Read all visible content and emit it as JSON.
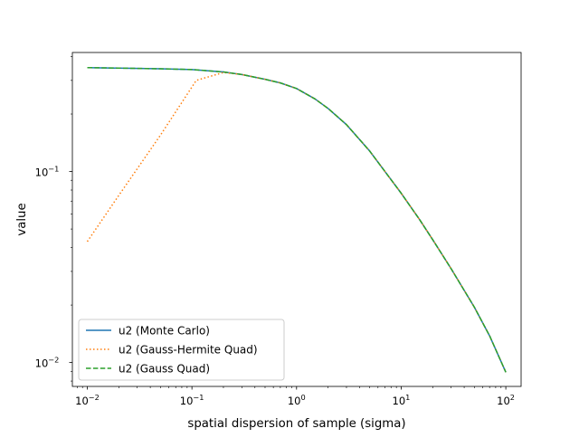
{
  "chart_data": {
    "type": "line",
    "title": "",
    "xlabel": "spatial dispersion of sample (sigma)",
    "ylabel": "value",
    "xscale": "log",
    "yscale": "log",
    "xlim": [
      0.0072,
      140
    ],
    "ylim": [
      0.0075,
      0.42
    ],
    "grid": false,
    "legend_location": "lower left",
    "x_ticks": [
      {
        "value": 0.01,
        "base": "10",
        "exp": "−2"
      },
      {
        "value": 0.1,
        "base": "10",
        "exp": "−1"
      },
      {
        "value": 1,
        "base": "10",
        "exp": "0"
      },
      {
        "value": 10,
        "base": "10",
        "exp": "1"
      },
      {
        "value": 100,
        "base": "10",
        "exp": "2"
      }
    ],
    "y_ticks": [
      {
        "value": 0.01,
        "base": "10",
        "exp": "−2"
      },
      {
        "value": 0.1,
        "base": "10",
        "exp": "−1"
      }
    ],
    "series": [
      {
        "name": "u2 (Monte Carlo)",
        "color": "#1f77b4",
        "style": "solid",
        "x": [
          0.01,
          0.02,
          0.05,
          0.1,
          0.2,
          0.3,
          0.5,
          0.7,
          1,
          1.5,
          2,
          3,
          5,
          7,
          10,
          15,
          20,
          30,
          50,
          70,
          100
        ],
        "y": [
          0.35,
          0.348,
          0.345,
          0.342,
          0.332,
          0.322,
          0.304,
          0.291,
          0.272,
          0.24,
          0.214,
          0.176,
          0.128,
          0.1,
          0.077,
          0.056,
          0.044,
          0.031,
          0.0195,
          0.0138,
          0.0089
        ]
      },
      {
        "name": "u2 (Gauss-Hermite Quad)",
        "color": "#ff7f0e",
        "style": "dotted",
        "x": [
          0.01,
          0.02,
          0.05,
          0.11,
          0.2,
          0.3,
          0.5,
          0.7,
          1,
          1.5,
          2,
          3,
          5,
          7,
          10,
          15,
          20,
          30,
          50,
          70,
          100
        ],
        "y": [
          0.043,
          0.075,
          0.155,
          0.3,
          0.33,
          0.322,
          0.304,
          0.291,
          0.272,
          0.24,
          0.214,
          0.176,
          0.128,
          0.1,
          0.077,
          0.056,
          0.044,
          0.031,
          0.0195,
          0.0138,
          0.0089
        ]
      },
      {
        "name": "u2 (Gauss Quad)",
        "color": "#2ca02c",
        "style": "dashed",
        "x": [
          0.01,
          0.02,
          0.05,
          0.1,
          0.2,
          0.3,
          0.5,
          0.7,
          1,
          1.5,
          2,
          3,
          5,
          7,
          10,
          15,
          20,
          30,
          50,
          70,
          100
        ],
        "y": [
          0.35,
          0.348,
          0.345,
          0.342,
          0.332,
          0.322,
          0.304,
          0.291,
          0.272,
          0.24,
          0.214,
          0.176,
          0.128,
          0.1,
          0.077,
          0.056,
          0.044,
          0.031,
          0.0195,
          0.0138,
          0.0089
        ]
      }
    ]
  }
}
